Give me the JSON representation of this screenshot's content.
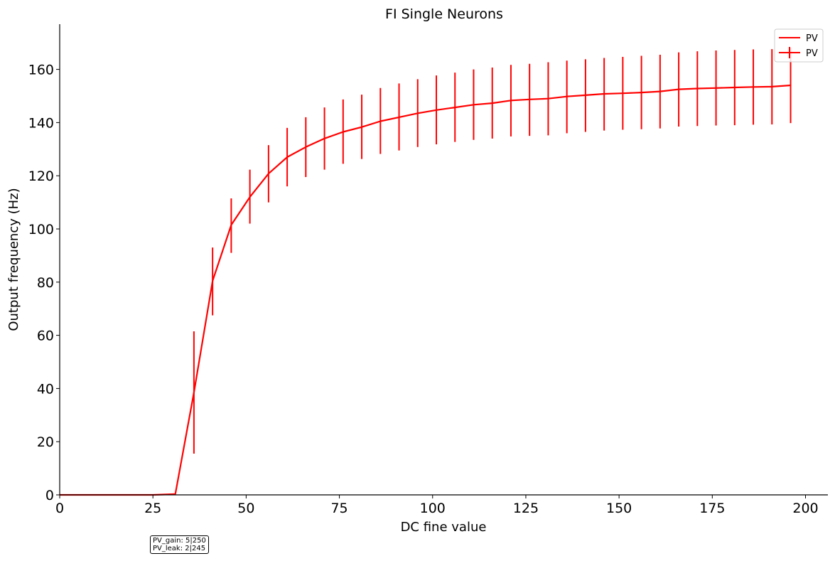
{
  "chart_data": {
    "type": "line",
    "title": "FI Single Neurons",
    "xlabel": "DC fine value",
    "ylabel": "Output frequency (Hz)",
    "xlim": [
      0,
      206
    ],
    "ylim": [
      0,
      177
    ],
    "xticks": [
      0,
      25,
      50,
      75,
      100,
      125,
      150,
      175,
      200
    ],
    "yticks": [
      0,
      20,
      40,
      60,
      80,
      100,
      120,
      140,
      160
    ],
    "grid": false,
    "legend": {
      "placement": "top-right",
      "entries": [
        "PV",
        "PV"
      ]
    },
    "series": [
      {
        "name": "PV",
        "color": "#ff0000",
        "x": [
          0,
          5,
          10,
          15,
          20,
          25,
          31,
          36,
          41,
          46,
          51,
          56,
          61,
          66,
          71,
          76,
          81,
          86,
          91,
          96,
          101,
          106,
          111,
          116,
          121,
          126,
          131,
          136,
          141,
          146,
          151,
          156,
          161,
          166,
          171,
          176,
          181,
          186,
          191,
          196
        ],
        "y": [
          0,
          0,
          0,
          0,
          0,
          0,
          0.3,
          38.5,
          80.5,
          101.5,
          112,
          120.8,
          127,
          130.8,
          134,
          136.5,
          138.3,
          140.5,
          142,
          143.5,
          144.7,
          145.7,
          146.7,
          147.3,
          148.3,
          148.7,
          149,
          149.8,
          150.3,
          150.8,
          151,
          151.3,
          151.7,
          152.5,
          152.8,
          153,
          153.2,
          153.4,
          153.5,
          154
        ],
        "yerr_x": [
          36,
          41,
          46,
          51,
          56,
          61,
          66,
          71,
          76,
          81,
          86,
          91,
          96,
          101,
          106,
          111,
          116,
          121,
          126,
          131,
          136,
          141,
          146,
          151,
          156,
          161,
          166,
          171,
          176,
          181,
          186,
          191,
          196
        ],
        "yerr_low": [
          15.5,
          67.5,
          91,
          102,
          110,
          116,
          119.5,
          122.3,
          124.5,
          126.3,
          128.2,
          129.5,
          130.8,
          131.8,
          132.7,
          133.5,
          134,
          134.8,
          135,
          135.2,
          136,
          136.5,
          137,
          137.3,
          137.5,
          137.8,
          138.5,
          138.7,
          138.9,
          139,
          139.2,
          139.3,
          139.8
        ],
        "yerr_high": [
          61.5,
          93,
          111.5,
          122.3,
          131.5,
          138,
          142,
          145.7,
          148.7,
          150.5,
          153,
          154.7,
          156.3,
          157.7,
          158.8,
          160,
          160.7,
          161.7,
          162.1,
          162.7,
          163.3,
          163.8,
          164.3,
          164.7,
          165.1,
          165.5,
          166.4,
          166.8,
          167.1,
          167.3,
          167.5,
          167.6,
          168.2
        ]
      }
    ]
  },
  "annotation": {
    "line1": "PV_gain: 5|250",
    "line2": "PV_leak: 2|245"
  }
}
